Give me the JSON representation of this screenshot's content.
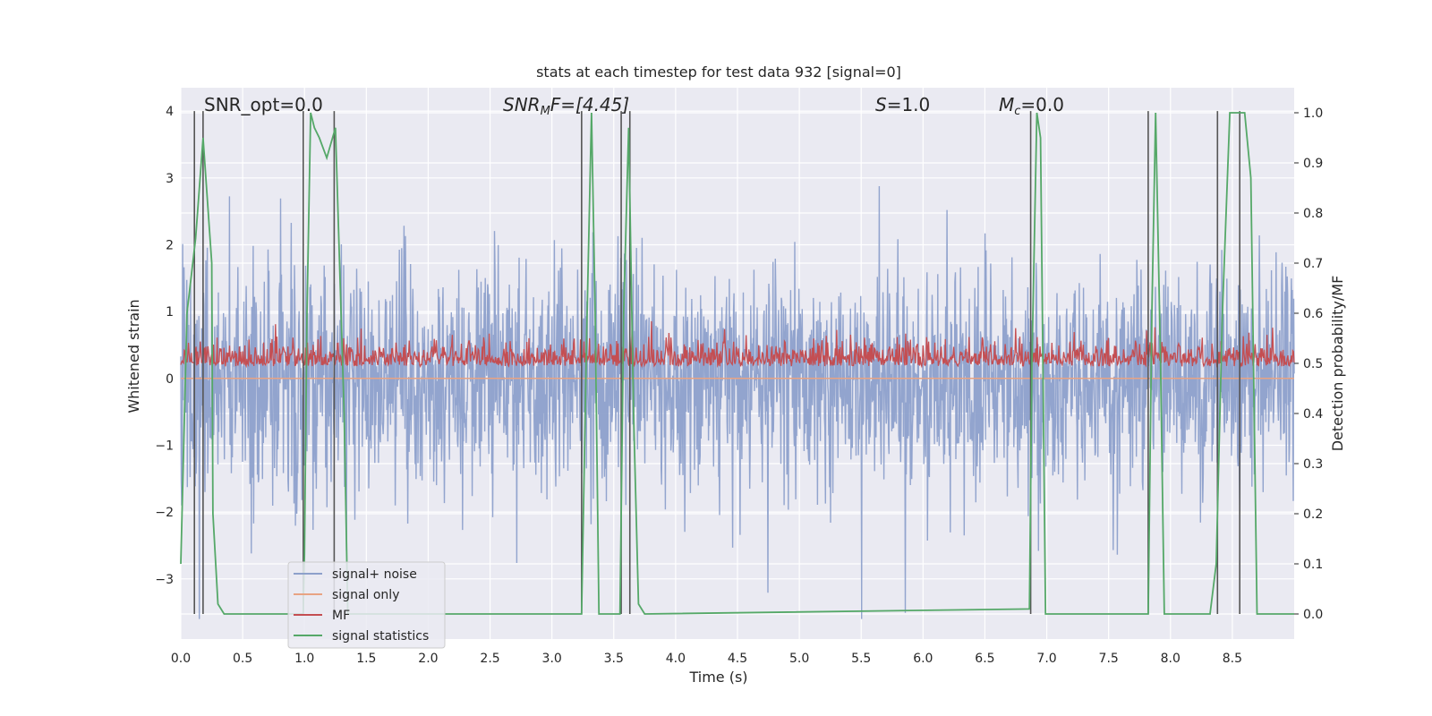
{
  "chart_data": {
    "type": "line",
    "title": "stats at each timestep for test data 932 [signal=0]",
    "xlabel": "Time (s)",
    "ylabel": "Whitened strain",
    "ylabel_right": "Detection probability/MF",
    "xlim": [
      0.0,
      9.0
    ],
    "ylim": [
      -3.9,
      4.35
    ],
    "ylim_right": [
      -0.05,
      1.05
    ],
    "xticks": [
      0.0,
      0.5,
      1.0,
      1.5,
      2.0,
      2.5,
      3.0,
      3.5,
      4.0,
      4.5,
      5.0,
      5.5,
      6.0,
      6.5,
      7.0,
      7.5,
      8.0,
      8.5
    ],
    "yticks": [
      -3,
      -2,
      -1,
      0,
      1,
      2,
      3,
      4
    ],
    "yticks_right": [
      0.0,
      0.1,
      0.2,
      0.3,
      0.4,
      0.5,
      0.6,
      0.7,
      0.8,
      0.9,
      1.0
    ],
    "grid": true,
    "legend_position": "lower-left",
    "annotations": [
      {
        "text": "SNR_opt=0.0",
        "x": 0.2,
        "y": 4.1
      },
      {
        "html_base": "SNR",
        "html_sub": "M",
        "html_rest": "F=[4.45]",
        "x": 2.6,
        "y": 4.1
      },
      {
        "html_base": "S",
        "html_sub": "",
        "html_rest": "=1.0",
        "x": 5.6,
        "y": 4.1
      },
      {
        "html_base": "M",
        "html_sub": "c",
        "html_rest": "=0.0",
        "x": 6.6,
        "y": 4.1
      }
    ],
    "series": [
      {
        "name": "signal+ noise",
        "color": "#8da0cb",
        "axis": "left",
        "style": "noise",
        "seed": 932,
        "amplitude": 1.1
      },
      {
        "name": "signal only",
        "color": "#e8a383",
        "axis": "left",
        "values": [
          0.0,
          0.0
        ],
        "x": [
          0.0,
          9.0
        ]
      },
      {
        "name": "MF",
        "color": "#c44e52",
        "axis": "left",
        "style": "mf",
        "seed": 77,
        "base": 0.18,
        "amplitude": 0.3
      },
      {
        "name": "signal statistics",
        "color": "#55a868",
        "axis": "right",
        "x": [
          0.0,
          0.05,
          0.12,
          0.18,
          0.25,
          0.26,
          0.3,
          0.35,
          0.99,
          1.0,
          1.02,
          1.05,
          1.08,
          1.12,
          1.18,
          1.25,
          1.32,
          1.35,
          3.24,
          3.28,
          3.32,
          3.35,
          3.38,
          3.55,
          3.58,
          3.62,
          3.66,
          3.7,
          3.75,
          6.86,
          6.88,
          6.92,
          6.95,
          6.99,
          7.82,
          7.85,
          7.88,
          7.92,
          7.95,
          8.32,
          8.37,
          8.42,
          8.48,
          8.55,
          8.6,
          8.65,
          8.7,
          9.0
        ],
        "values": [
          0.1,
          0.6,
          0.75,
          0.95,
          0.7,
          0.2,
          0.02,
          0.0,
          0.0,
          0.12,
          0.6,
          1.0,
          0.97,
          0.95,
          0.91,
          0.97,
          0.4,
          0.0,
          0.0,
          0.55,
          1.0,
          0.6,
          0.0,
          0.0,
          0.6,
          0.97,
          0.4,
          0.02,
          0.0,
          0.01,
          0.5,
          1.0,
          0.95,
          0.0,
          0.0,
          0.6,
          1.0,
          0.5,
          0.0,
          0.0,
          0.1,
          0.6,
          1.0,
          1.0,
          1.0,
          0.87,
          0.0,
          0.0
        ]
      }
    ],
    "vlines": [
      0.11,
      0.18,
      0.99,
      1.24,
      3.24,
      3.56,
      3.63,
      6.87,
      7.82,
      8.38,
      8.56
    ]
  }
}
